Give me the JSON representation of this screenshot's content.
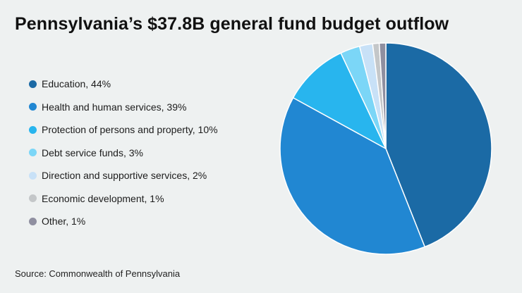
{
  "chart_data": {
    "type": "pie",
    "title": "Pennsylvania’s $37.8B general fund budget outflow",
    "source": "Source: Commonwealth of Pennsylvania",
    "legend_position": "left",
    "slices": [
      {
        "label": "Education, 44%",
        "value": 44,
        "color": "#1b6aa5"
      },
      {
        "label": "Health and human services, 39%",
        "value": 39,
        "color": "#2187d2"
      },
      {
        "label": "Protection of persons and property, 10%",
        "value": 10,
        "color": "#28b5ee"
      },
      {
        "label": "Debt service funds, 3%",
        "value": 3,
        "color": "#7bd6f7"
      },
      {
        "label": "Direction and supportive services, 2%",
        "value": 2,
        "color": "#c8e1f7"
      },
      {
        "label": "Economic development, 1%",
        "value": 1,
        "color": "#c4c7c9"
      },
      {
        "label": "Other, 1%",
        "value": 1,
        "color": "#8f8fa0"
      }
    ]
  }
}
